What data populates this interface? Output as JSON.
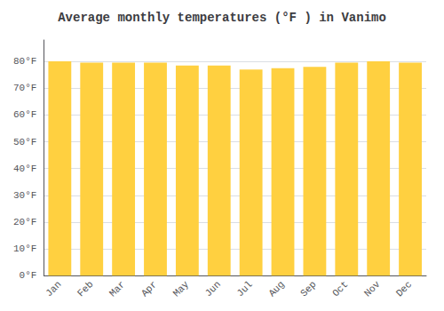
{
  "chart_data": {
    "type": "bar",
    "title": "Average monthly temperatures (°F ) in Vanimo",
    "categories": [
      "Jan",
      "Feb",
      "Mar",
      "Apr",
      "May",
      "Jun",
      "Jul",
      "Aug",
      "Sep",
      "Oct",
      "Nov",
      "Dec"
    ],
    "values": [
      80,
      79.5,
      79.5,
      79.5,
      78.5,
      78.5,
      77,
      77.5,
      78,
      79.5,
      80,
      79.5
    ],
    "color": "#FFD040",
    "ylim": [
      0,
      88
    ],
    "yticks": [
      {
        "value": 0,
        "label": "0°F"
      },
      {
        "value": 10,
        "label": "10°F"
      },
      {
        "value": 20,
        "label": "20°F"
      },
      {
        "value": 30,
        "label": "30°F"
      },
      {
        "value": 40,
        "label": "40°F"
      },
      {
        "value": 50,
        "label": "50°F"
      },
      {
        "value": 60,
        "label": "60°F"
      },
      {
        "value": 70,
        "label": "70°F"
      },
      {
        "value": 80,
        "label": "80°F"
      }
    ],
    "grid": true
  }
}
